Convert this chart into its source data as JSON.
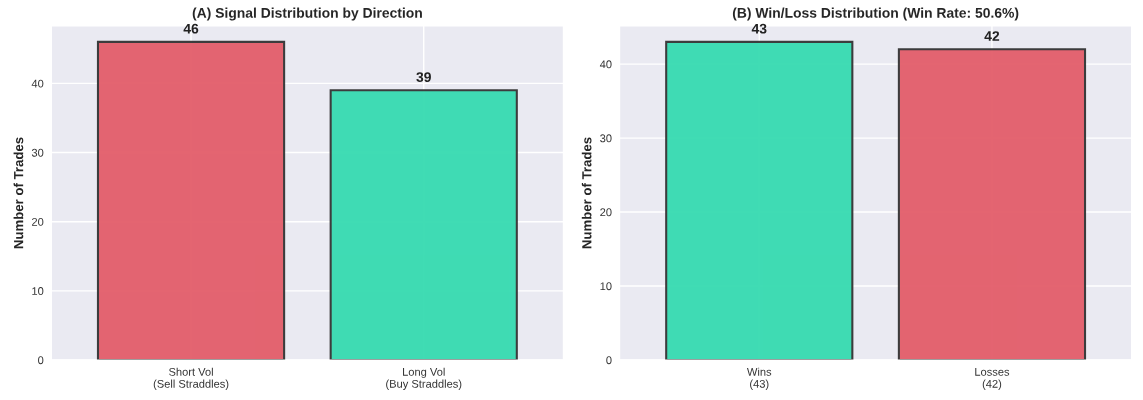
{
  "chart_data": [
    {
      "type": "bar",
      "title": "(A) Signal Distribution by Direction",
      "ylabel": "Number of Trades",
      "categories": [
        "Short Vol\n(Sell Straddles)",
        "Long Vol\n(Buy Straddles)"
      ],
      "values": [
        46,
        39
      ],
      "colors": [
        "#e35d6a",
        "#36dbb0"
      ],
      "ylim": [
        0,
        48.3
      ],
      "yticks": [
        0,
        10,
        20,
        30,
        40
      ],
      "grid": true,
      "data_labels": true
    },
    {
      "type": "bar",
      "title": "(B) Win/Loss Distribution (Win Rate: 50.6%)",
      "ylabel": "Number of Trades",
      "categories": [
        "Wins\n(43)",
        "Losses\n(42)"
      ],
      "values": [
        43,
        42
      ],
      "colors": [
        "#36dbb0",
        "#e35d6a"
      ],
      "ylim": [
        0,
        45.15
      ],
      "yticks": [
        0,
        10,
        20,
        30,
        40
      ],
      "grid": true,
      "data_labels": true
    }
  ]
}
